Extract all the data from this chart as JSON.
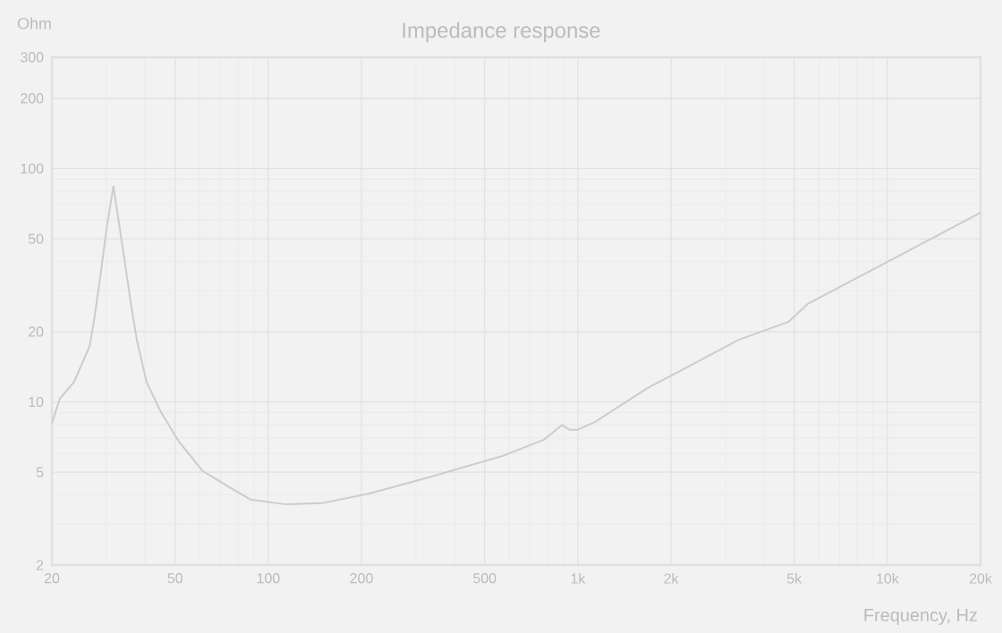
{
  "chart_data": {
    "type": "line",
    "title": "Impedance response",
    "xlabel": "Frequency, Hz",
    "ylabel": "Ohm",
    "log": "xy",
    "grid": true,
    "marker": "none",
    "line_style": "solid",
    "xlim": [
      20,
      20000
    ],
    "ylim": [
      2,
      300
    ],
    "xticks": [
      20,
      50,
      100,
      200,
      500,
      {
        "value": 1000,
        "label": "1k"
      },
      {
        "value": 2000,
        "label": "2k"
      },
      {
        "value": 5000,
        "label": "5k"
      },
      {
        "value": 10000,
        "label": "10k"
      },
      {
        "value": 20000,
        "label": "20k"
      }
    ],
    "yticks": [
      2,
      5,
      10,
      20,
      50,
      100,
      200,
      300
    ],
    "series": [
      {
        "color": "#cccccc",
        "x": [
          20,
          21.2,
          23.6,
          26.5,
          27.5,
          28.9,
          30.1,
          31.6,
          33.1,
          35.1,
          36,
          37.6,
          40.4,
          44.9,
          51.3,
          61.3,
          73.6,
          87.5,
          114,
          149,
          212,
          333,
          568,
          776,
          888,
          940,
          1000,
          1134,
          1687,
          3320,
          4780,
          5530,
          20000
        ],
        "values": [
          8.1,
          10.3,
          12.2,
          17.4,
          23.3,
          37.4,
          56.4,
          84,
          56,
          33.2,
          26.3,
          18.5,
          12.2,
          9.1,
          6.8,
          5.07,
          4.37,
          3.82,
          3.64,
          3.68,
          4.05,
          4.77,
          5.85,
          6.88,
          7.96,
          7.6,
          7.6,
          8.2,
          11.5,
          18.5,
          22,
          26.3,
          64.7
        ]
      }
    ]
  }
}
